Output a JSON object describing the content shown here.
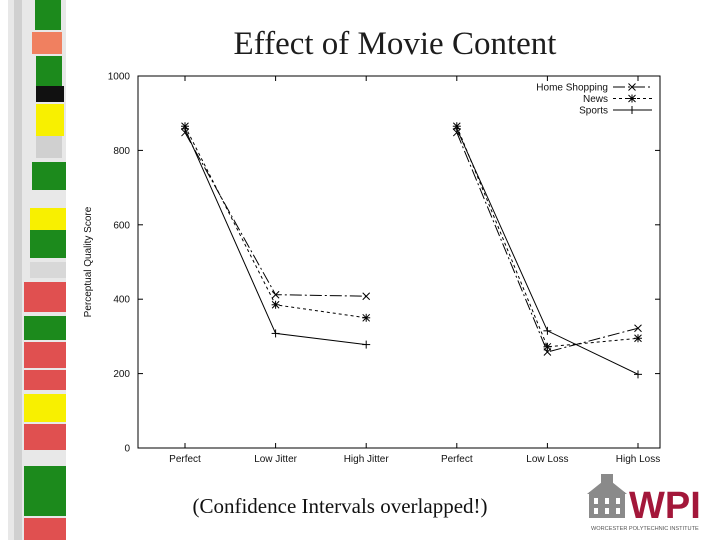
{
  "slide": {
    "title": "Effect of Movie Content",
    "caption": "(Confidence Intervals overlapped!)"
  },
  "logo": {
    "name": "WPI",
    "tagline": "WORCESTER POLYTECHNIC INSTITUTE",
    "colors": {
      "maroon": "#a3173a",
      "building": "#8a8a8a"
    }
  },
  "decor": {
    "stripe_colors": [
      "#1c8a1c",
      "#e05050",
      "#f8f000",
      "#111111",
      "#cccccc",
      "#f08060"
    ]
  },
  "chart_data": {
    "type": "line",
    "title": "",
    "ylabel": "Perceptual Quality Score",
    "xlabel": "",
    "categories": [
      "Perfect",
      "Low Jitter",
      "High Jitter",
      "Perfect",
      "Low Loss",
      "High Loss"
    ],
    "ylim": [
      0,
      1000
    ],
    "yticks": [
      0,
      200,
      400,
      600,
      800,
      1000
    ],
    "grid": false,
    "legend_position": "top-right",
    "segments": [
      [
        0,
        1,
        2
      ],
      [
        3,
        4,
        5
      ]
    ],
    "series": [
      {
        "name": "Home Shopping",
        "marker": "x",
        "dash": "12,3,2,3",
        "values": [
          848,
          412,
          408,
          848,
          258,
          322
        ]
      },
      {
        "name": "News",
        "marker": "*",
        "dash": "3,3",
        "values": [
          865,
          385,
          350,
          865,
          272,
          295
        ]
      },
      {
        "name": "Sports",
        "marker": "+",
        "dash": "",
        "values": [
          858,
          308,
          278,
          858,
          315,
          198
        ]
      }
    ]
  }
}
